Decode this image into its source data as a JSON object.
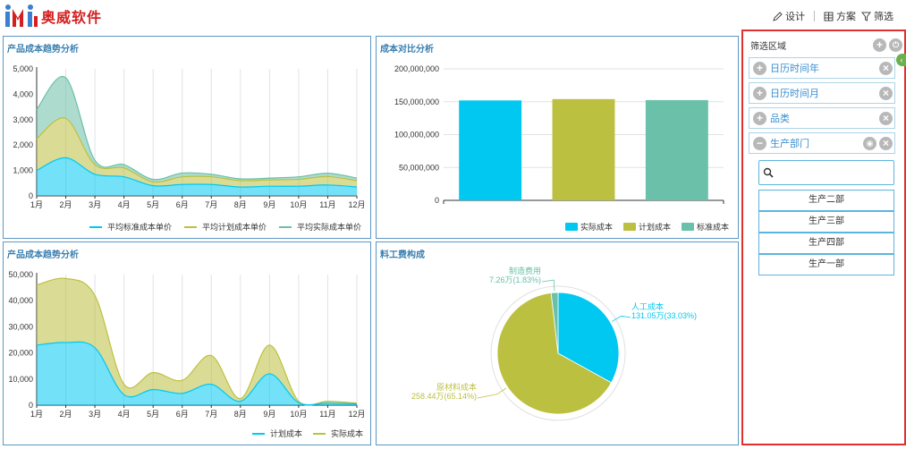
{
  "header": {
    "logo_text": "奥威软件",
    "toolbar": {
      "design": "设计",
      "plan": "方案",
      "filter": "筛选"
    }
  },
  "panels": {
    "p1": {
      "title": "产品成本趋势分析"
    },
    "p2": {
      "title": "成本对比分析"
    },
    "p3": {
      "title": "产品成本趋势分析"
    },
    "p4": {
      "title": "料工费构成"
    }
  },
  "sidebar": {
    "title": "筛选区域",
    "filters": [
      {
        "label": "日历时间年",
        "state": "add"
      },
      {
        "label": "日历时间月",
        "state": "add"
      },
      {
        "label": "品类",
        "state": "add"
      },
      {
        "label": "生产部门",
        "state": "remove"
      }
    ],
    "search": {
      "value": "",
      "placeholder": ""
    },
    "departments": [
      "生产二部",
      "生产三部",
      "生产四部",
      "生产一部"
    ]
  },
  "colors": {
    "cyan": "#00c8f0",
    "olive": "#bcc040",
    "teal": "#6ac0a8",
    "accent": "#3a7fb0",
    "brand": "#d42020"
  },
  "chart_data": [
    {
      "type": "area",
      "categories": [
        "1月",
        "2月",
        "3月",
        "4月",
        "5月",
        "6月",
        "7月",
        "8月",
        "9月",
        "10月",
        "11月",
        "12月"
      ],
      "ylim": [
        0,
        5000
      ],
      "yticks": [
        "5,000",
        "4,000",
        "3,000",
        "2,000",
        "1,000",
        "0"
      ],
      "stacked": true,
      "legend_position": "bottom-right",
      "series": [
        {
          "name": "平均标准成本单价",
          "color": "#00c8f0",
          "values": [
            1000,
            1500,
            850,
            750,
            400,
            450,
            450,
            350,
            380,
            380,
            430,
            350
          ]
        },
        {
          "name": "平均计划成本单价",
          "color": "#bcc040",
          "values": [
            1250,
            1550,
            380,
            350,
            150,
            300,
            300,
            250,
            250,
            270,
            330,
            250
          ]
        },
        {
          "name": "平均实际成本单价",
          "color": "#6ac0a8",
          "values": [
            1150,
            1600,
            170,
            130,
            100,
            150,
            100,
            70,
            70,
            100,
            130,
            100
          ]
        }
      ]
    },
    {
      "type": "bar",
      "categories": [
        "实际成本",
        "计划成本",
        "标准成本"
      ],
      "values": [
        152000000,
        154000000,
        152500000
      ],
      "colors": [
        "#00c8f0",
        "#bcc040",
        "#6ac0a8"
      ],
      "ylim": [
        0,
        200000000
      ],
      "yticks": [
        "200,000,000",
        "150,000,000",
        "100,000,000",
        "50,000,000",
        "0"
      ],
      "legend_position": "bottom-right",
      "legend": [
        "实际成本",
        "计划成本",
        "标准成本"
      ]
    },
    {
      "type": "area",
      "categories": [
        "1月",
        "2月",
        "3月",
        "4月",
        "5月",
        "6月",
        "7月",
        "8月",
        "9月",
        "10月",
        "11月",
        "12月"
      ],
      "ylim": [
        0,
        50000
      ],
      "yticks": [
        "50,000",
        "40,000",
        "30,000",
        "20,000",
        "10,000",
        "0"
      ],
      "stacked": true,
      "legend_position": "bottom-right",
      "series": [
        {
          "name": "计划成本",
          "color": "#00c8f0",
          "values": [
            23000,
            24000,
            22000,
            4000,
            6000,
            4500,
            8000,
            1500,
            12000,
            1000,
            800,
            500
          ]
        },
        {
          "name": "实际成本",
          "color": "#bcc040",
          "values": [
            23000,
            24500,
            20000,
            4000,
            6500,
            5000,
            11000,
            1000,
            11000,
            500,
            700,
            300
          ]
        }
      ]
    },
    {
      "type": "pie",
      "slices": [
        {
          "name": "人工成本",
          "label": "131.05万(33.03%)",
          "value": 33.03,
          "color": "#00c8f0"
        },
        {
          "name": "原材料成本",
          "label": "258.44万(65.14%)",
          "value": 65.14,
          "color": "#bcc040"
        },
        {
          "name": "制造费用",
          "label": "7.26万(1.83%)",
          "value": 1.83,
          "color": "#6ac0a8"
        }
      ]
    }
  ]
}
